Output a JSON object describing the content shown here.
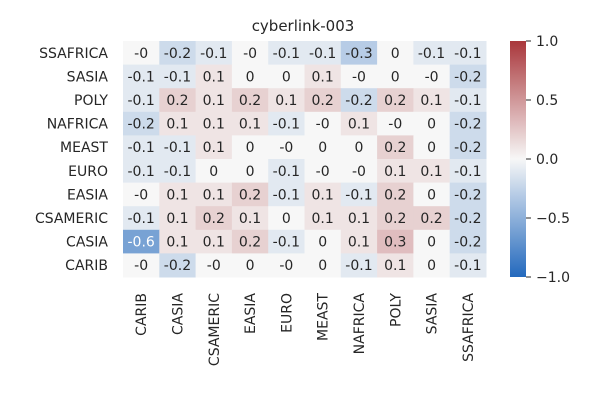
{
  "chart_data": {
    "type": "heatmap",
    "title": "cyberlink-003",
    "xlabel": "",
    "ylabel": "",
    "x_categories": [
      "CARIB",
      "CASIA",
      "CSAMERIC",
      "EASIA",
      "EURO",
      "MEAST",
      "NAFRICA",
      "POLY",
      "SASIA",
      "SSAFRICA"
    ],
    "y_categories": [
      "SSAFRICA",
      "SASIA",
      "POLY",
      "NAFRICA",
      "MEAST",
      "EURO",
      "EASIA",
      "CSAMERIC",
      "CASIA",
      "CARIB"
    ],
    "values": [
      [
        -0.0,
        -0.2,
        -0.1,
        -0.0,
        -0.1,
        -0.1,
        -0.3,
        0.0,
        -0.1,
        -0.1
      ],
      [
        -0.1,
        -0.1,
        0.1,
        0.0,
        0.0,
        0.1,
        -0.0,
        0.0,
        -0.0,
        -0.2
      ],
      [
        -0.1,
        0.2,
        0.1,
        0.2,
        0.1,
        0.2,
        -0.2,
        0.2,
        0.1,
        -0.1
      ],
      [
        -0.2,
        0.1,
        0.1,
        0.1,
        -0.1,
        -0.0,
        0.1,
        -0.0,
        0.0,
        -0.2
      ],
      [
        -0.1,
        -0.1,
        0.1,
        0.0,
        -0.0,
        0.0,
        0.0,
        0.2,
        0.0,
        -0.2
      ],
      [
        -0.1,
        -0.1,
        0.0,
        0.0,
        -0.1,
        -0.0,
        -0.0,
        0.1,
        0.1,
        -0.1
      ],
      [
        -0.0,
        0.1,
        0.1,
        0.2,
        -0.1,
        0.1,
        -0.1,
        0.2,
        0.0,
        -0.2
      ],
      [
        -0.1,
        0.1,
        0.2,
        0.1,
        0.0,
        0.1,
        0.1,
        0.2,
        0.2,
        -0.2
      ],
      [
        -0.6,
        0.1,
        0.1,
        0.2,
        -0.1,
        0.0,
        0.1,
        0.3,
        0.0,
        -0.2
      ],
      [
        -0.0,
        -0.2,
        -0.0,
        0.0,
        -0.0,
        0.0,
        -0.1,
        0.1,
        0.0,
        -0.1
      ]
    ],
    "cell_labels": [
      [
        "-0",
        "-0.2",
        "-0.1",
        "-0",
        "-0.1",
        "-0.1",
        "-0.3",
        "0",
        "-0.1",
        "-0.1"
      ],
      [
        "-0.1",
        "-0.1",
        "0.1",
        "0",
        "0",
        "0.1",
        "-0",
        "0",
        "-0",
        "-0.2"
      ],
      [
        "-0.1",
        "0.2",
        "0.1",
        "0.2",
        "0.1",
        "0.2",
        "-0.2",
        "0.2",
        "0.1",
        "-0.1"
      ],
      [
        "-0.2",
        "0.1",
        "0.1",
        "0.1",
        "-0.1",
        "-0",
        "0.1",
        "-0",
        "0",
        "-0.2"
      ],
      [
        "-0.1",
        "-0.1",
        "0.1",
        "0",
        "-0",
        "0",
        "0",
        "0.2",
        "0",
        "-0.2"
      ],
      [
        "-0.1",
        "-0.1",
        "0",
        "0",
        "-0.1",
        "-0",
        "-0",
        "0.1",
        "0.1",
        "-0.1"
      ],
      [
        "-0",
        "0.1",
        "0.1",
        "0.2",
        "-0.1",
        "0.1",
        "-0.1",
        "0.2",
        "0",
        "-0.2"
      ],
      [
        "-0.1",
        "0.1",
        "0.2",
        "0.1",
        "0",
        "0.1",
        "0.1",
        "0.2",
        "0.2",
        "-0.2"
      ],
      [
        "-0.6",
        "0.1",
        "0.1",
        "0.2",
        "-0.1",
        "0",
        "0.1",
        "0.3",
        "0",
        "-0.2"
      ],
      [
        "-0",
        "-0.2",
        "-0",
        "0",
        "-0",
        "0",
        "-0.1",
        "0.1",
        "0",
        "-0.1"
      ]
    ],
    "colorbar": {
      "vmin": -1.0,
      "vmax": 1.0,
      "ticks": [
        1.0,
        0.5,
        0.0,
        -0.5,
        -1.0
      ],
      "tick_labels": [
        "1.0",
        "0.5",
        "0.0",
        "−0.5",
        "−1.0"
      ],
      "colormap": "vlag",
      "low_color": "#2369bd",
      "mid_color": "#f7f7f7",
      "high_color": "#a9373b"
    },
    "grid": false,
    "legend": "colorbar-right"
  }
}
